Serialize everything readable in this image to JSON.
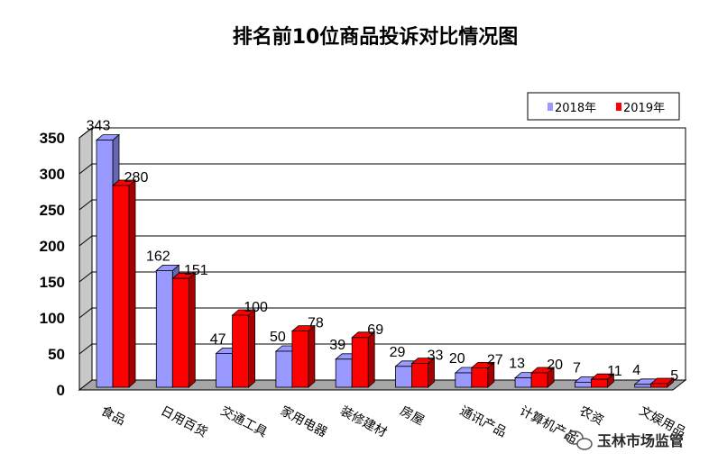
{
  "chart_data": {
    "type": "bar",
    "title": "排名前10位商品投诉对比情况图",
    "categories": [
      "食品",
      "日用百货",
      "交通工具",
      "家用电器",
      "装修建材",
      "房屋",
      "通讯产品",
      "计算机产品",
      "农资",
      "文娱用品"
    ],
    "series": [
      {
        "name": "2018年",
        "values": [
          343,
          162,
          47,
          50,
          39,
          29,
          20,
          13,
          7,
          4
        ]
      },
      {
        "name": "2019年",
        "values": [
          280,
          151,
          100,
          78,
          69,
          33,
          27,
          20,
          11,
          5
        ]
      }
    ],
    "y_ticks": [
      "0",
      "50",
      "100",
      "150",
      "200",
      "250",
      "300",
      "350"
    ],
    "ylim": [
      0,
      350
    ],
    "legend_position": "top-right",
    "grid": true,
    "colors": {
      "series_2018": "#9999ff",
      "series_2018_dark": "#6666b3",
      "series_2019": "#ff0000",
      "series_2019_dark": "#a80000",
      "back_wall": "#ffffff",
      "floor": "#a6a6a6",
      "side_wall": "#c8c8c8"
    }
  },
  "watermark": {
    "text": "玉林市场监管",
    "icon": "wechat-icon"
  }
}
